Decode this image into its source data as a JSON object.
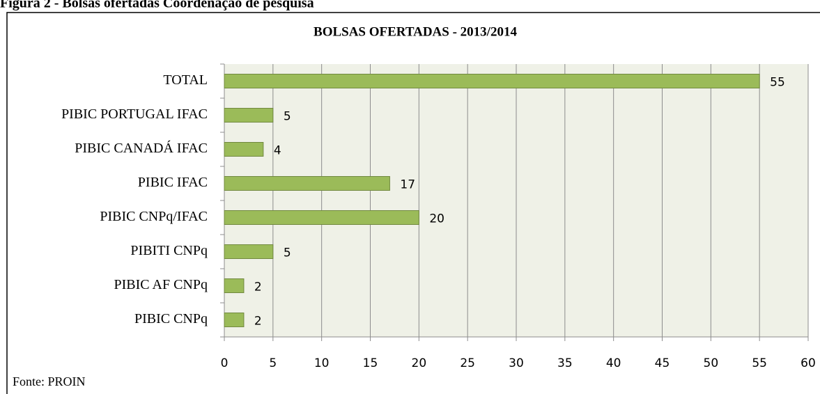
{
  "caption": "Figura 2 - Bolsas ofertadas Coordenação de pesquisa",
  "chart_data": {
    "type": "hbar",
    "title": "BOLSAS OFERTADAS -  2013/2014",
    "categories": [
      "TOTAL",
      "PIBIC PORTUGAL IFAC",
      "PIBIC CANADÁ IFAC",
      "PIBIC IFAC",
      "PIBIC CNPq/IFAC",
      "PIBITI CNPq",
      "PIBIC AF CNPq",
      "PIBIC CNPq"
    ],
    "values": [
      55,
      5,
      4,
      17,
      20,
      5,
      2,
      2
    ],
    "color": "#9bbb59",
    "xlim": [
      0,
      60
    ],
    "xticks": [
      0,
      5,
      10,
      15,
      20,
      25,
      30,
      35,
      40,
      45,
      50,
      55,
      60
    ],
    "grid": true,
    "source": "Fonte: PROIN"
  }
}
